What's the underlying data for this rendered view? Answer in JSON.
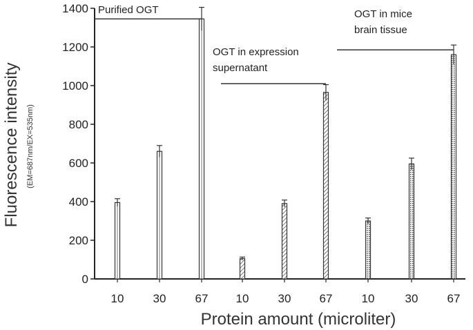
{
  "chart_data": {
    "type": "bar",
    "title": "",
    "xlabel": "Protein amount (microliter)",
    "ylabel": "Fluorescence intensity",
    "ylabel_sub": "(EM=687nm/EX=535nm)",
    "ylim": [
      0,
      1400
    ],
    "yticks": [
      0,
      200,
      400,
      600,
      800,
      1000,
      1200,
      1400
    ],
    "grid": false,
    "categories": [
      "10",
      "30",
      "67",
      "10",
      "30",
      "67",
      "10",
      "30",
      "67"
    ],
    "values": [
      395,
      660,
      1345,
      105,
      390,
      965,
      300,
      595,
      1160
    ],
    "errors": [
      20,
      30,
      60,
      8,
      18,
      40,
      15,
      30,
      50
    ],
    "groups": [
      {
        "name": "Purified OGT",
        "label_lines": [
          "Purified OGT"
        ],
        "patterns": "plain",
        "bar_indices": [
          0,
          1,
          2
        ],
        "bracket_y": 1345
      },
      {
        "name": "OGT in expression supernatant",
        "label_lines": [
          "OGT in expression",
          "supernatant"
        ],
        "patterns": "hatch",
        "bar_indices": [
          3,
          4,
          5
        ],
        "bracket_y": 1010
      },
      {
        "name": "OGT in mice brain tissue",
        "label_lines": [
          "OGT in mice",
          "brain tissue"
        ],
        "patterns": "dots",
        "bar_indices": [
          6,
          7,
          8
        ],
        "bracket_y": 1185
      }
    ],
    "colors": {
      "axis": "#222222",
      "bar_stroke": "#333333",
      "bar_fill": "#ffffff",
      "hatch": "#666666"
    }
  }
}
